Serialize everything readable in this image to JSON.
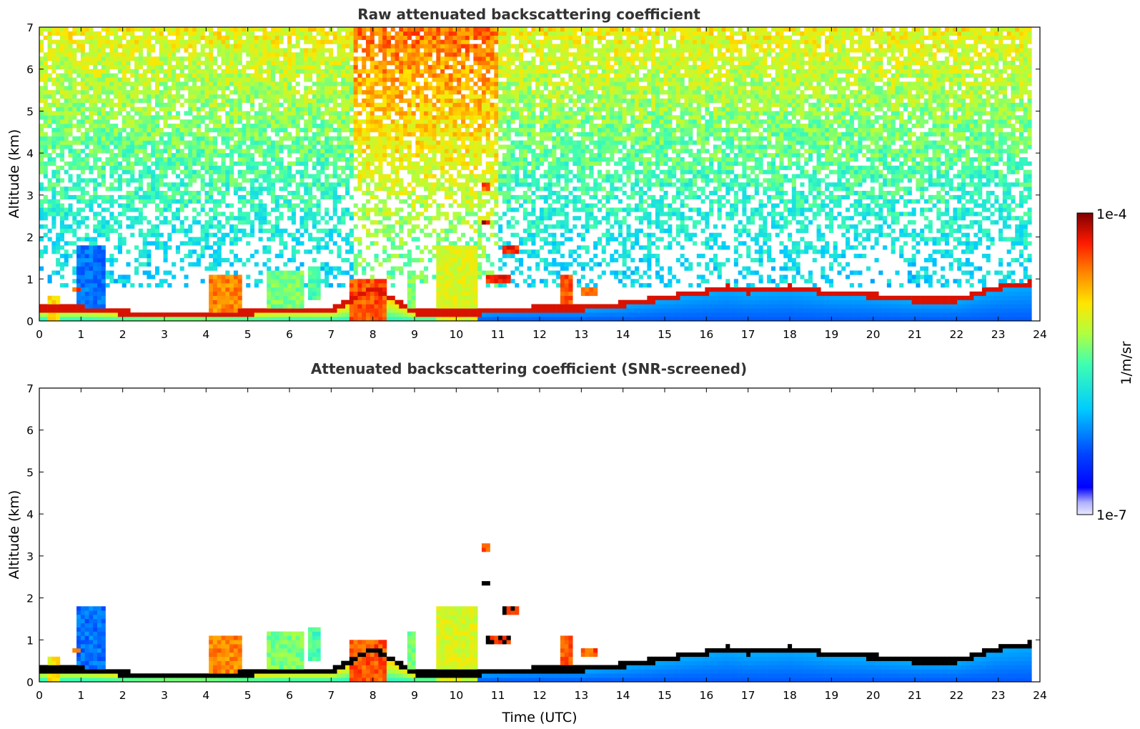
{
  "chart_data": [
    {
      "type": "heatmap",
      "title": "Raw attenuated backscattering coefficient",
      "xlabel": "",
      "ylabel": "Altitude (km)",
      "xlim": [
        0,
        24
      ],
      "ylim": [
        0,
        7
      ],
      "xticks": [
        0,
        1,
        2,
        3,
        4,
        5,
        6,
        7,
        8,
        9,
        10,
        11,
        12,
        13,
        14,
        15,
        16,
        17,
        18,
        19,
        20,
        21,
        22,
        23,
        24
      ],
      "yticks": [
        0,
        1,
        2,
        3,
        4,
        5,
        6,
        7
      ],
      "data_until_hour": 23.8,
      "boundary_layer_top_km": {
        "hours": [
          0,
          1,
          2,
          3,
          4,
          5,
          6,
          7,
          7.5,
          8,
          9,
          10,
          10.5,
          11,
          12,
          13,
          13.5,
          14,
          15,
          16,
          16.5,
          17,
          18,
          19,
          20,
          21,
          22,
          23,
          23.8
        ],
        "values": [
          0.3,
          0.3,
          0.2,
          0.15,
          0.15,
          0.2,
          0.25,
          0.25,
          0.5,
          0.8,
          0.2,
          0.2,
          0.2,
          0.25,
          0.3,
          0.3,
          0.35,
          0.4,
          0.55,
          0.7,
          0.8,
          0.7,
          0.8,
          0.65,
          0.6,
          0.5,
          0.5,
          0.8,
          0.9
        ]
      },
      "clouds": [
        {
          "start": 0.2,
          "end": 0.5,
          "bottom": 0.0,
          "top": 0.6,
          "intensity": 0.75
        },
        {
          "start": 0.8,
          "end": 1.0,
          "bottom": 0.7,
          "top": 0.8,
          "intensity": 0.9
        },
        {
          "start": 0.9,
          "end": 1.6,
          "bottom": 0.3,
          "top": 1.8,
          "intensity": 0.3
        },
        {
          "start": 4.1,
          "end": 4.9,
          "bottom": 0.2,
          "top": 1.1,
          "intensity": 0.85
        },
        {
          "start": 5.5,
          "end": 6.3,
          "bottom": 0.2,
          "top": 1.2,
          "intensity": 0.6
        },
        {
          "start": 6.4,
          "end": 6.7,
          "bottom": 0.5,
          "top": 1.3,
          "intensity": 0.55
        },
        {
          "start": 7.4,
          "end": 8.3,
          "bottom": 0.0,
          "top": 0.95,
          "intensity": 0.9
        },
        {
          "start": 8.8,
          "end": 9.0,
          "bottom": 0.3,
          "top": 1.2,
          "intensity": 0.6
        },
        {
          "start": 9.5,
          "end": 10.5,
          "bottom": 0.0,
          "top": 1.8,
          "intensity": 0.7
        },
        {
          "start": 10.6,
          "end": 10.8,
          "bottom": 2.3,
          "top": 2.4,
          "intensity": 1.0
        },
        {
          "start": 10.6,
          "end": 10.8,
          "bottom": 3.1,
          "top": 3.3,
          "intensity": 0.9
        },
        {
          "start": 10.7,
          "end": 11.3,
          "bottom": 0.95,
          "top": 1.1,
          "intensity": 0.95
        },
        {
          "start": 11.1,
          "end": 11.5,
          "bottom": 1.55,
          "top": 1.75,
          "intensity": 0.95
        },
        {
          "start": 12.5,
          "end": 12.8,
          "bottom": 0.2,
          "top": 1.1,
          "intensity": 0.9
        },
        {
          "start": 13.0,
          "end": 13.4,
          "bottom": 0.6,
          "top": 0.75,
          "intensity": 0.9
        }
      ],
      "colorbar": {
        "label": "1/m/sr",
        "min_label": "1e-7",
        "max_label": "1e-4",
        "scale": "log"
      }
    },
    {
      "type": "heatmap",
      "title": "Attenuated backscattering coefficient (SNR-screened)",
      "xlabel": "Time (UTC)",
      "ylabel": "Altitude (km)",
      "xlim": [
        0,
        24
      ],
      "ylim": [
        0,
        7
      ],
      "xticks": [
        0,
        1,
        2,
        3,
        4,
        5,
        6,
        7,
        8,
        9,
        10,
        11,
        12,
        13,
        14,
        15,
        16,
        17,
        18,
        19,
        20,
        21,
        22,
        23,
        24
      ],
      "yticks": [
        0,
        1,
        2,
        3,
        4,
        5,
        6,
        7
      ],
      "screening": "SNR",
      "high_values_shown_as": "#000000"
    }
  ],
  "colors": {
    "background": "#ffffff",
    "title": "#333333",
    "axis": "#000000",
    "saturated": "#000000"
  }
}
